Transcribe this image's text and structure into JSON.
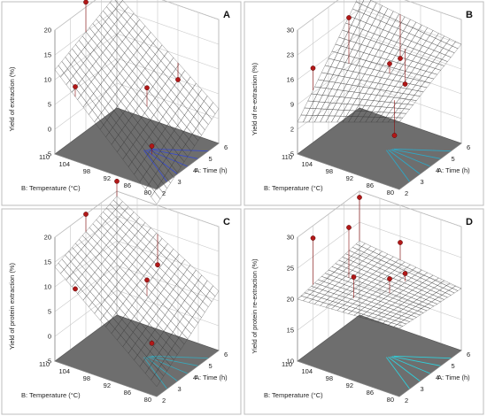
{
  "chart_data": [
    {
      "panel": "A",
      "type": "surface3d",
      "zlabel": "Yield of extraction (%)",
      "xlabel": "A: Time (h)",
      "ylabel": "B: Temperature (°C)",
      "x_ticks": [
        "2",
        "3",
        "4",
        "5",
        "6"
      ],
      "y_ticks": [
        "80",
        "86",
        "92",
        "98",
        "104",
        "110"
      ],
      "z_ticks": [
        "20",
        "15",
        "10",
        "5",
        "0",
        "-5"
      ],
      "xlim": [
        2,
        6
      ],
      "ylim": [
        80,
        110
      ],
      "zlim": [
        -5,
        20
      ],
      "surface_corners": {
        "x2_y80": -8,
        "x6_y80": 2,
        "x2_y110": 12,
        "x6_y110": 18
      },
      "colormap": "rainbow",
      "design_points": [
        {
          "x": 4,
          "y": 110,
          "z": 21
        },
        {
          "x": 2,
          "y": 104,
          "z": 10
        },
        {
          "x": 4,
          "y": 92,
          "z": 8
        },
        {
          "x": 3,
          "y": 86,
          "z": 0
        },
        {
          "x": 6,
          "y": 92,
          "z": 5
        }
      ],
      "floor_contour_color": "#3a4cc8"
    },
    {
      "panel": "B",
      "type": "surface3d",
      "zlabel": "Yield of re-extraction (%)",
      "xlabel": "A: Time (h)",
      "ylabel": "B: Temperature (°C)",
      "x_ticks": [
        "2",
        "3",
        "4",
        "5",
        "6"
      ],
      "y_ticks": [
        "80",
        "86",
        "92",
        "98",
        "104",
        "110"
      ],
      "z_ticks": [
        "30",
        "23",
        "16",
        "9",
        "2",
        "-5"
      ],
      "xlim": [
        2,
        6
      ],
      "ylim": [
        80,
        110
      ],
      "zlim": [
        -5,
        30
      ],
      "surface_corners": {
        "x2_y80": 14,
        "x6_y80": 23,
        "x2_y110": 4,
        "x6_y110": 27
      },
      "colormap": "rainbow",
      "design_points": [
        {
          "x": 3,
          "y": 110,
          "z": 16
        },
        {
          "x": 4,
          "y": 104,
          "z": 29
        },
        {
          "x": 4,
          "y": 92,
          "z": 20
        },
        {
          "x": 3,
          "y": 86,
          "z": 5
        },
        {
          "x": 5,
          "y": 92,
          "z": 11
        },
        {
          "x": 6,
          "y": 98,
          "z": 13
        }
      ],
      "floor_contour_color": "#2ea8c6"
    },
    {
      "panel": "C",
      "type": "surface3d",
      "zlabel": "Yield of protein extraction (%)",
      "xlabel": "A: Time (h)",
      "ylabel": "B: Temperature (°C)",
      "x_ticks": [
        "2",
        "3",
        "4",
        "5",
        "6"
      ],
      "y_ticks": [
        "80",
        "86",
        "92",
        "98",
        "104",
        "110"
      ],
      "z_ticks": [
        "20",
        "15",
        "10",
        "5",
        "0",
        "-5"
      ],
      "xlim": [
        2,
        6
      ],
      "ylim": [
        80,
        110
      ],
      "zlim": [
        -5,
        20
      ],
      "surface_corners": {
        "x2_y80": -3,
        "x6_y80": 7,
        "x2_y110": 14,
        "x6_y110": 19
      },
      "colormap": "rainbow",
      "design_points": [
        {
          "x": 4,
          "y": 110,
          "z": 20
        },
        {
          "x": 2,
          "y": 104,
          "z": 11
        },
        {
          "x": 4,
          "y": 92,
          "z": 11
        },
        {
          "x": 3,
          "y": 86,
          "z": 2
        },
        {
          "x": 6,
          "y": 98,
          "z": 8
        },
        {
          "x": 6,
          "y": 110,
          "z": 22
        }
      ],
      "floor_contour_color": "#3aa6b8"
    },
    {
      "panel": "D",
      "type": "surface3d",
      "zlabel": "Yield of protein re-extraction (%)",
      "xlabel": "A: Time (h)",
      "ylabel": "B: Temperature (°C)",
      "x_ticks": [
        "2",
        "3",
        "4",
        "5",
        "6"
      ],
      "y_ticks": [
        "80",
        "86",
        "92",
        "98",
        "104",
        "110"
      ],
      "z_ticks": [
        "30",
        "25",
        "20",
        "15",
        "10"
      ],
      "xlim": [
        2,
        6
      ],
      "ylim": [
        80,
        110
      ],
      "zlim": [
        10,
        30
      ],
      "surface_corners": {
        "x2_y80": 21,
        "x6_y80": 20,
        "x2_y110": 20,
        "x6_y110": 22
      },
      "colormap": "rainbow",
      "design_points": [
        {
          "x": 3,
          "y": 110,
          "z": 28
        },
        {
          "x": 4,
          "y": 104,
          "z": 29
        },
        {
          "x": 3,
          "y": 98,
          "z": 24
        },
        {
          "x": 4,
          "y": 92,
          "z": 23
        },
        {
          "x": 5,
          "y": 92,
          "z": 22
        },
        {
          "x": 6,
          "y": 98,
          "z": 24
        },
        {
          "x": 6,
          "y": 110,
          "z": 29
        }
      ],
      "floor_contour_color": "#2fd0dc"
    }
  ]
}
